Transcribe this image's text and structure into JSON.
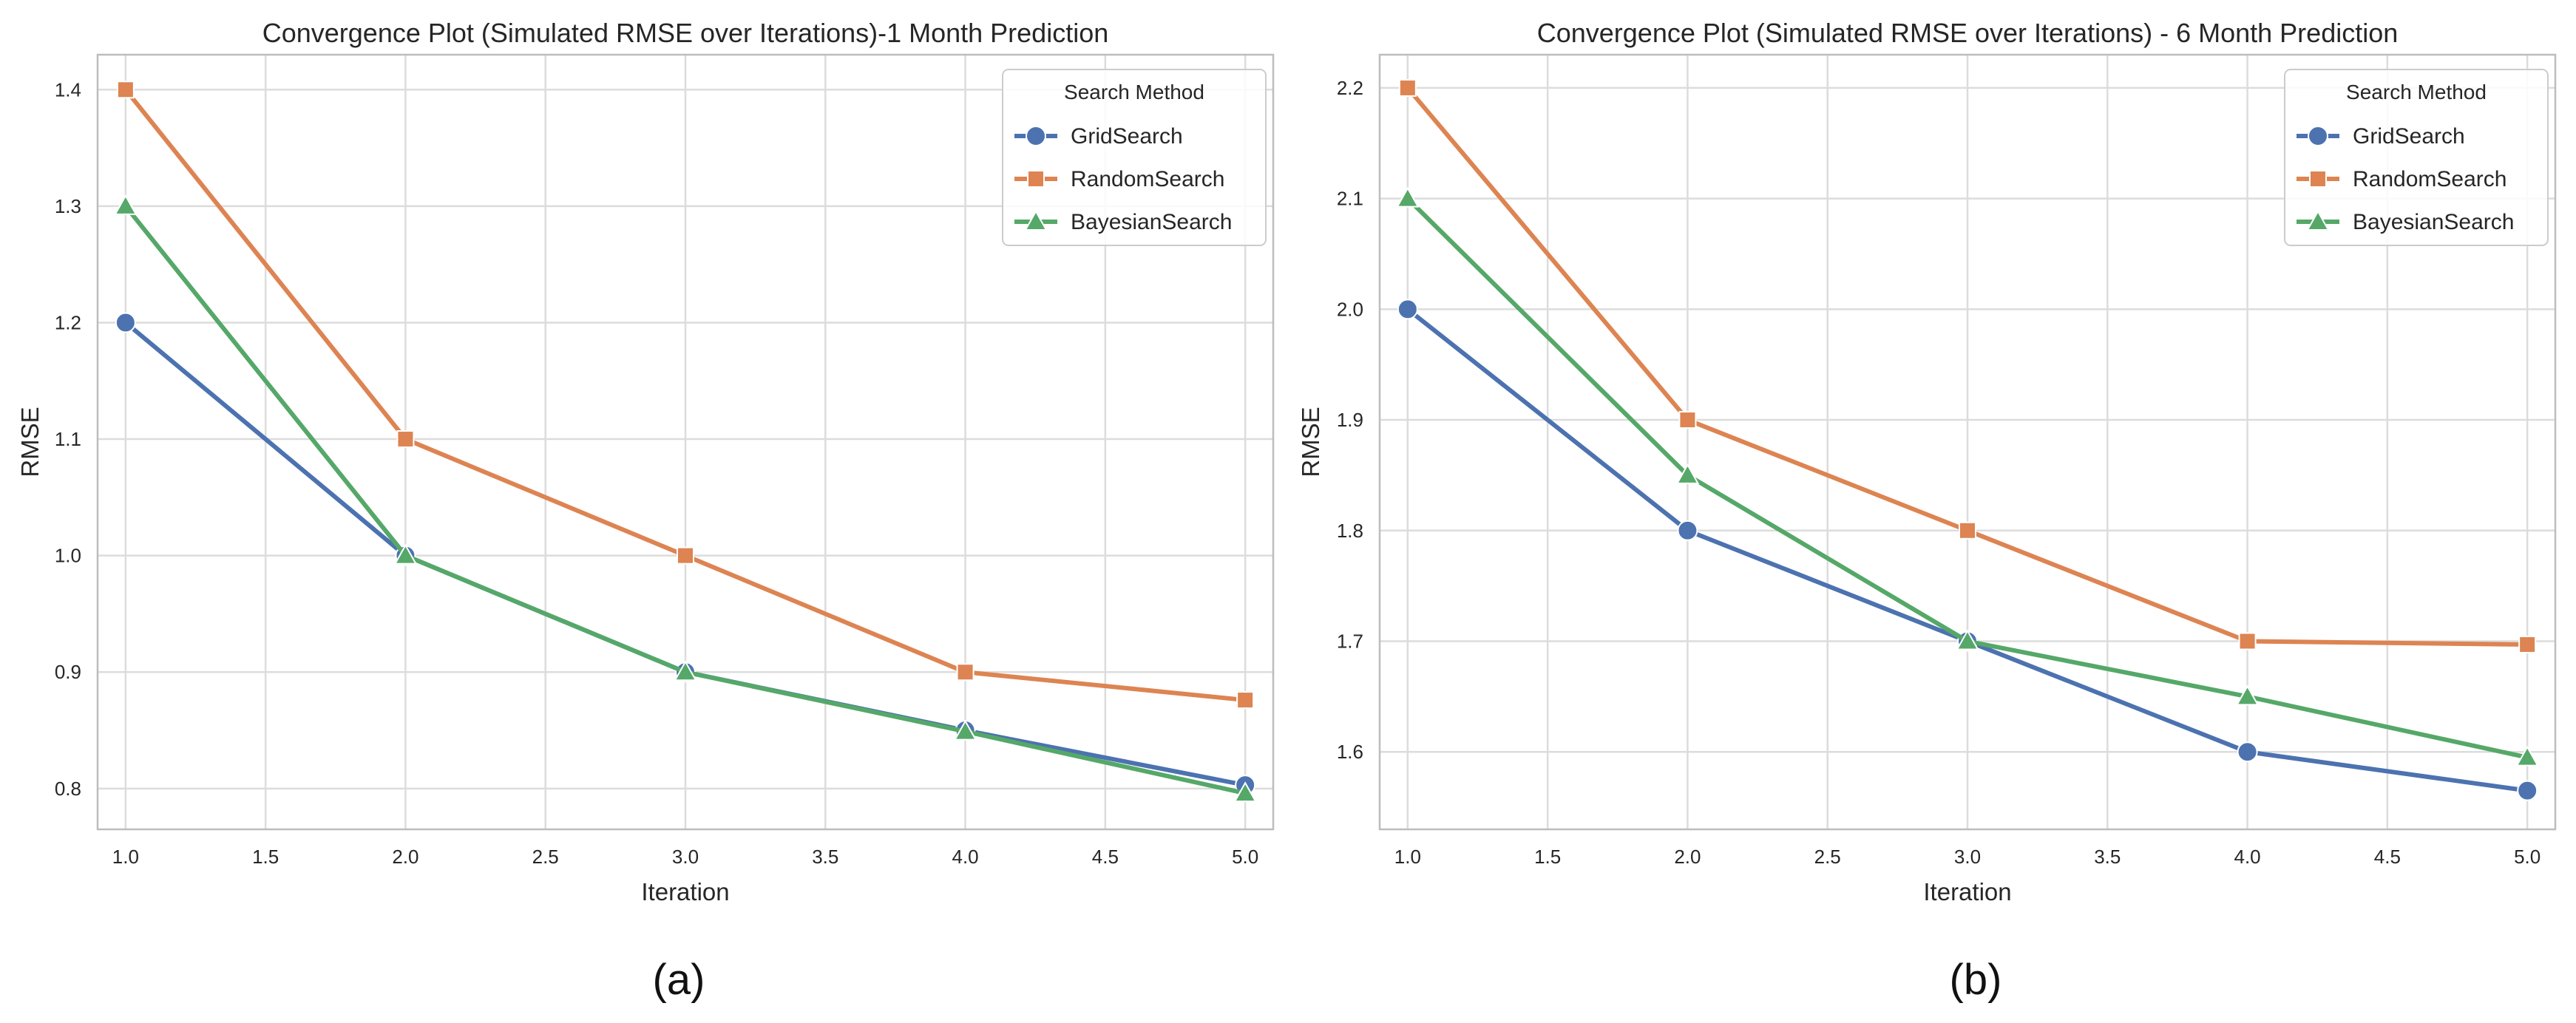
{
  "chart_data": [
    {
      "type": "line",
      "title": "Convergence Plot (Simulated RMSE over Iterations)-1 Month Prediction",
      "xlabel": "Iteration",
      "ylabel": "RMSE",
      "caption": "(a)",
      "xlim": [
        0.9,
        5.1
      ],
      "ylim": [
        0.765,
        1.43
      ],
      "xticks": [
        1.0,
        1.5,
        2.0,
        2.5,
        3.0,
        3.5,
        4.0,
        4.5,
        5.0
      ],
      "xtick_labels": [
        "1.0",
        "1.5",
        "2.0",
        "2.5",
        "3.0",
        "3.5",
        "4.0",
        "4.5",
        "5.0"
      ],
      "yticks": [
        0.8,
        0.9,
        1.0,
        1.1,
        1.2,
        1.3,
        1.4
      ],
      "ytick_labels": [
        "0.8",
        "0.9",
        "1.0",
        "1.1",
        "1.2",
        "1.3",
        "1.4"
      ],
      "grid": true,
      "legend": {
        "title": "Search Method",
        "placement": "top-right"
      },
      "x": [
        1,
        2,
        3,
        4,
        5
      ],
      "series": [
        {
          "name": "GridSearch",
          "color": "#4c72b0",
          "marker": "circle",
          "values": [
            1.2,
            1.0,
            0.9,
            0.85,
            0.803
          ]
        },
        {
          "name": "RandomSearch",
          "color": "#dd8452",
          "marker": "square",
          "values": [
            1.4,
            1.1,
            1.0,
            0.9,
            0.876
          ]
        },
        {
          "name": "BayesianSearch",
          "color": "#55a868",
          "marker": "triangle",
          "values": [
            1.3,
            1.0,
            0.9,
            0.849,
            0.796
          ]
        }
      ]
    },
    {
      "type": "line",
      "title": "Convergence Plot (Simulated RMSE over Iterations) - 6 Month Prediction",
      "xlabel": "Iteration",
      "ylabel": "RMSE",
      "caption": "(b)",
      "xlim": [
        0.9,
        5.1
      ],
      "ylim": [
        1.53,
        2.23
      ],
      "xticks": [
        1.0,
        1.5,
        2.0,
        2.5,
        3.0,
        3.5,
        4.0,
        4.5,
        5.0
      ],
      "xtick_labels": [
        "1.0",
        "1.5",
        "2.0",
        "2.5",
        "3.0",
        "3.5",
        "4.0",
        "4.5",
        "5.0"
      ],
      "yticks": [
        1.6,
        1.7,
        1.8,
        1.9,
        2.0,
        2.1,
        2.2
      ],
      "ytick_labels": [
        "1.6",
        "1.7",
        "1.8",
        "1.9",
        "2.0",
        "2.1",
        "2.2"
      ],
      "grid": true,
      "legend": {
        "title": "Search Method",
        "placement": "top-right"
      },
      "x": [
        1,
        2,
        3,
        4,
        5
      ],
      "series": [
        {
          "name": "GridSearch",
          "color": "#4c72b0",
          "marker": "circle",
          "values": [
            2.0,
            1.8,
            1.7,
            1.6,
            1.565
          ]
        },
        {
          "name": "RandomSearch",
          "color": "#dd8452",
          "marker": "square",
          "values": [
            2.2,
            1.9,
            1.8,
            1.7,
            1.697
          ]
        },
        {
          "name": "BayesianSearch",
          "color": "#55a868",
          "marker": "triangle",
          "values": [
            2.1,
            1.85,
            1.7,
            1.65,
            1.595
          ]
        }
      ]
    }
  ]
}
